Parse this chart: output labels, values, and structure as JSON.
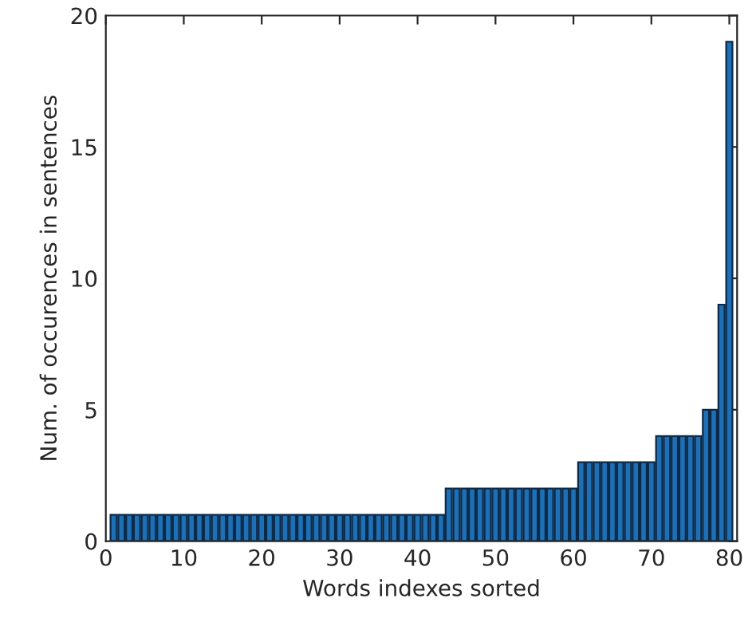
{
  "chart_data": {
    "type": "bar",
    "xlabel": "Words indexes sorted",
    "ylabel": "Num. of occurences in sentences",
    "x": [
      1,
      2,
      3,
      4,
      5,
      6,
      7,
      8,
      9,
      10,
      11,
      12,
      13,
      14,
      15,
      16,
      17,
      18,
      19,
      20,
      21,
      22,
      23,
      24,
      25,
      26,
      27,
      28,
      29,
      30,
      31,
      32,
      33,
      34,
      35,
      36,
      37,
      38,
      39,
      40,
      41,
      42,
      43,
      44,
      45,
      46,
      47,
      48,
      49,
      50,
      51,
      52,
      53,
      54,
      55,
      56,
      57,
      58,
      59,
      60,
      61,
      62,
      63,
      64,
      65,
      66,
      67,
      68,
      69,
      70,
      71,
      72,
      73,
      74,
      75,
      76,
      77,
      78,
      79,
      80
    ],
    "values": [
      1,
      1,
      1,
      1,
      1,
      1,
      1,
      1,
      1,
      1,
      1,
      1,
      1,
      1,
      1,
      1,
      1,
      1,
      1,
      1,
      1,
      1,
      1,
      1,
      1,
      1,
      1,
      1,
      1,
      1,
      1,
      1,
      1,
      1,
      1,
      1,
      1,
      1,
      1,
      1,
      1,
      1,
      1,
      2,
      2,
      2,
      2,
      2,
      2,
      2,
      2,
      2,
      2,
      2,
      2,
      2,
      2,
      2,
      2,
      2,
      3,
      3,
      3,
      3,
      3,
      3,
      3,
      3,
      3,
      3,
      4,
      4,
      4,
      4,
      4,
      4,
      5,
      5,
      9,
      19
    ],
    "color": "#1f6fb4",
    "xlim": [
      0,
      81
    ],
    "xticks": [
      0,
      10,
      20,
      30,
      40,
      50,
      60,
      70,
      80
    ],
    "ylim": [
      0,
      20
    ],
    "yticks": [
      0,
      5,
      10,
      15,
      20
    ]
  }
}
